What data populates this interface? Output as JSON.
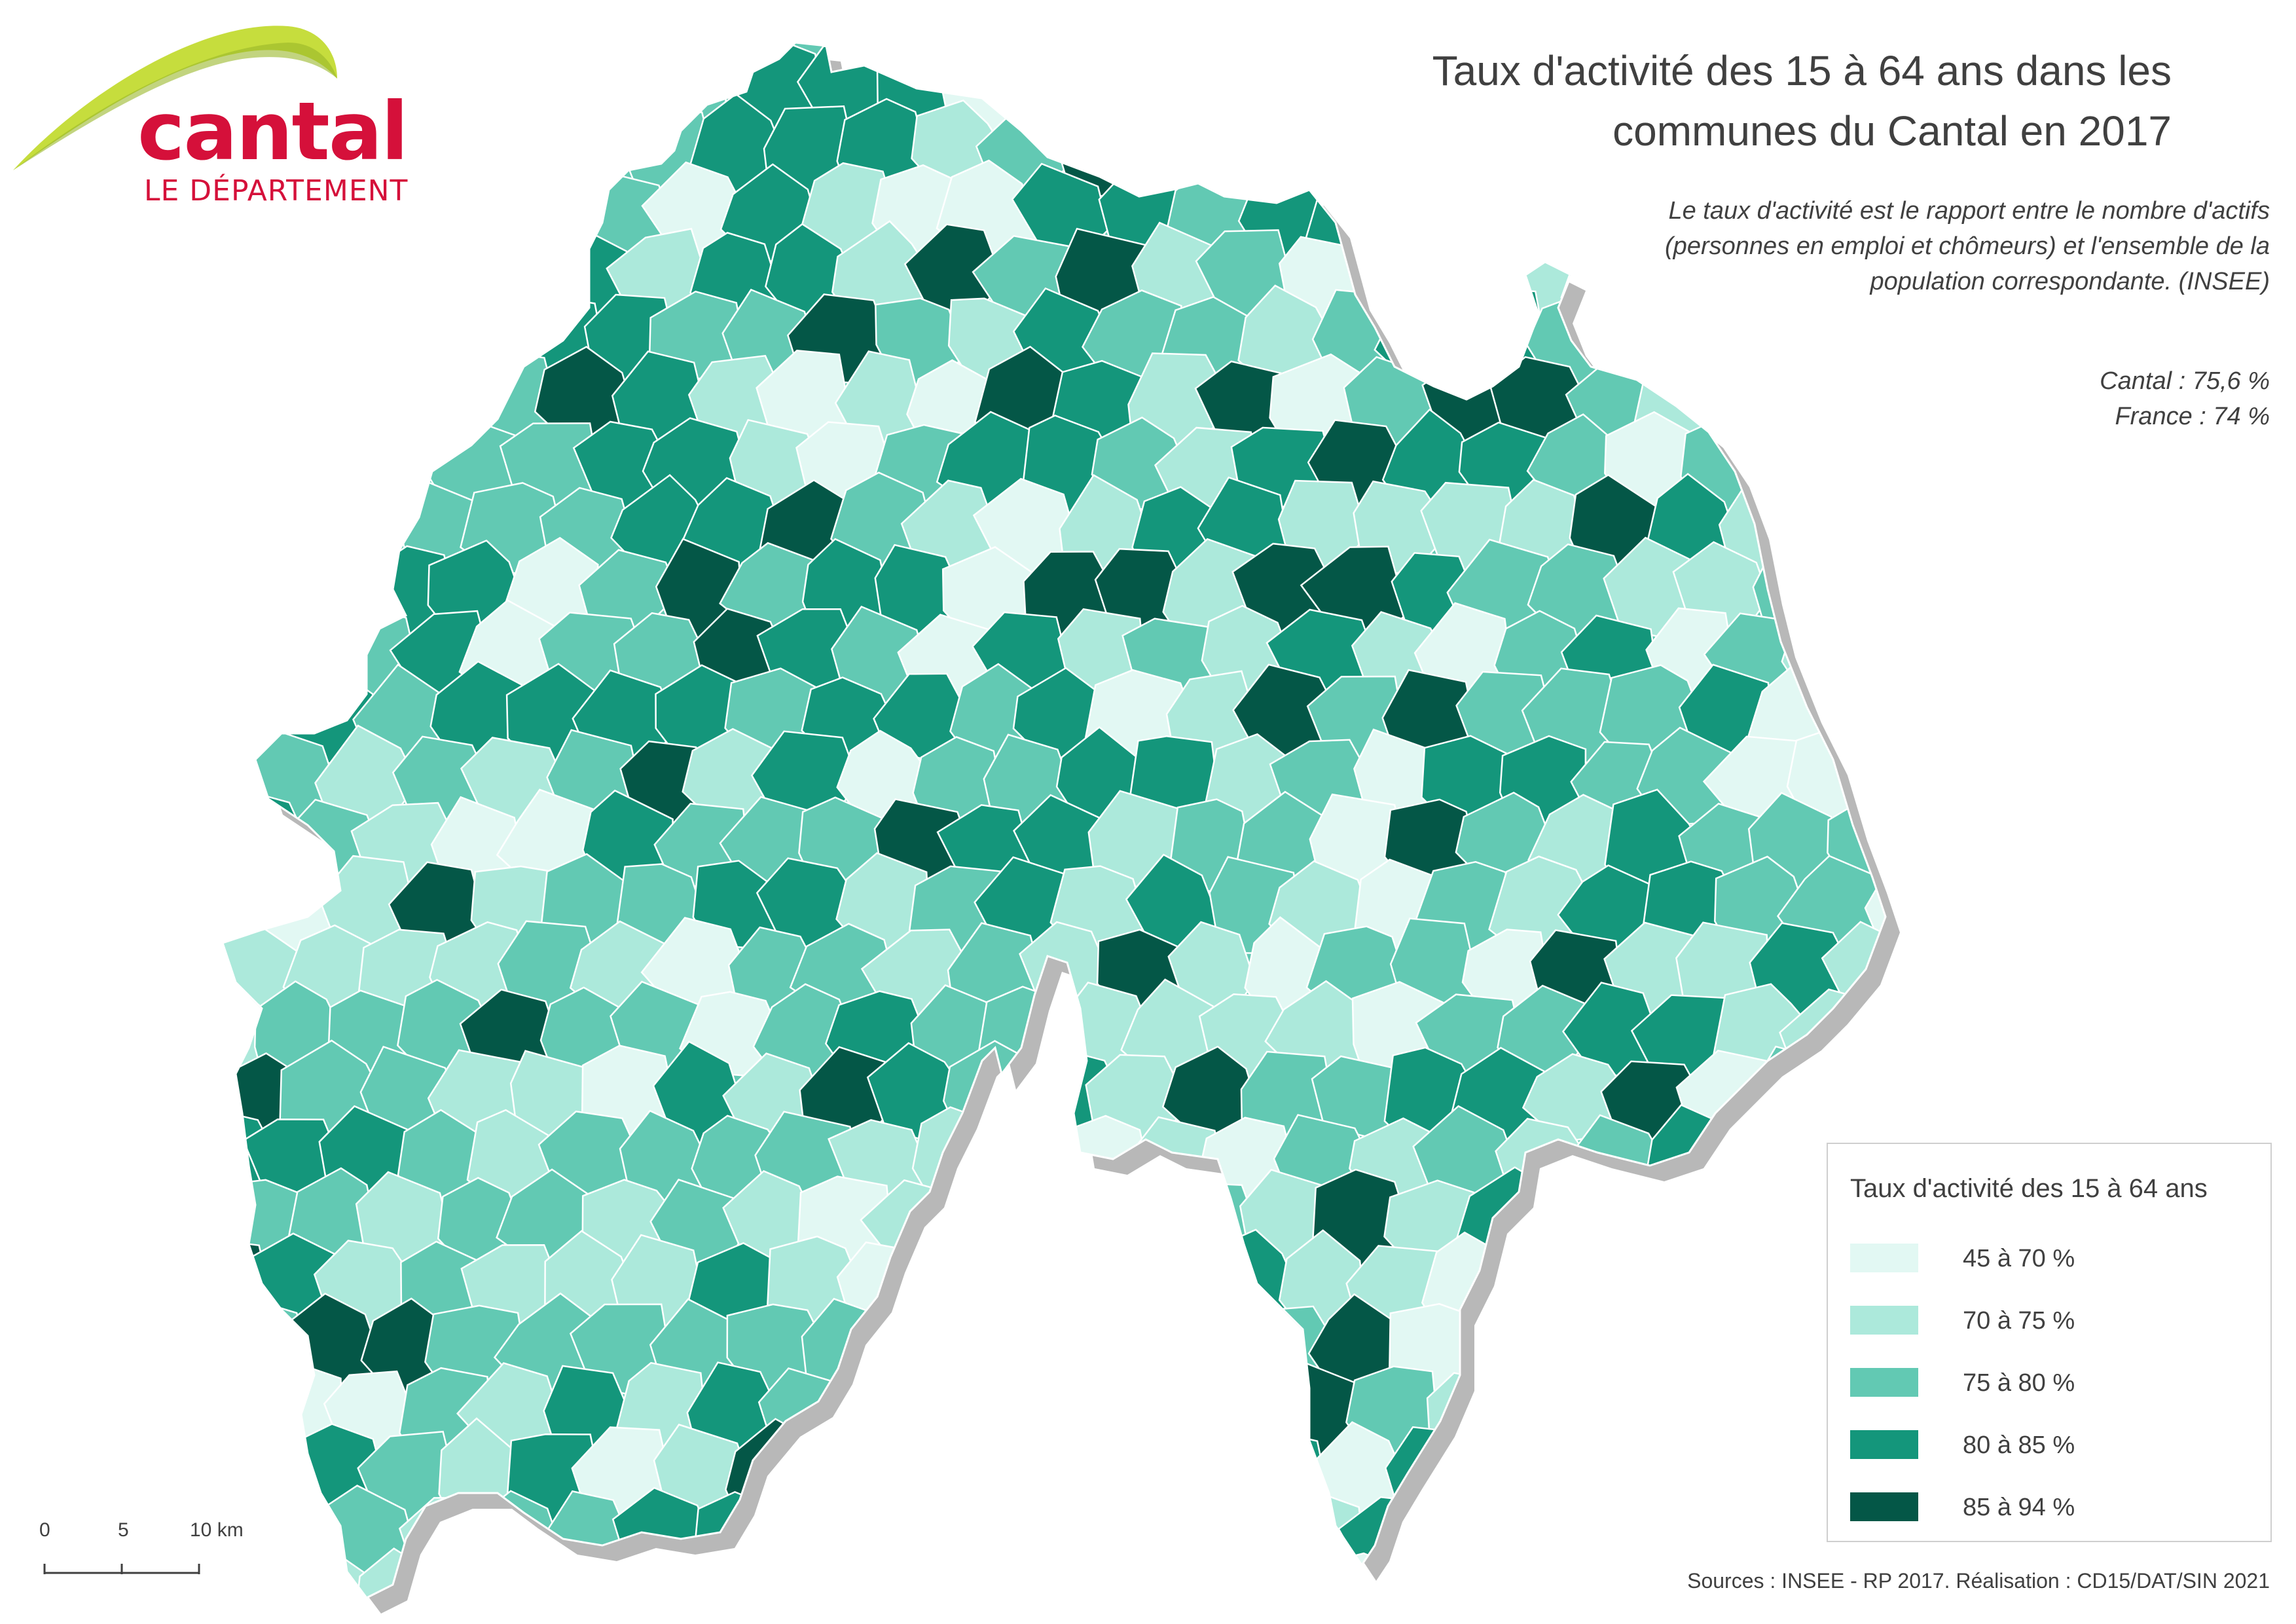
{
  "logo": {
    "wordmark": "cantal",
    "subtitle": "LE DÉPARTEMENT",
    "colors": {
      "red": "#d5103a",
      "green_light": "#c6dd3d",
      "green_dark": "#9ab82a"
    }
  },
  "title": {
    "line1": "Taux d'activité des 15 à 64 ans dans les",
    "line2": "communes du Cantal en 2017"
  },
  "subtitle": {
    "line1": "Le taux d'activité est le rapport entre le nombre d'actifs",
    "line2": "(personnes en emploi et chômeurs) et l'ensemble de la",
    "line3": "population correspondante. (INSEE)"
  },
  "reference_values": {
    "cantal": "Cantal : 75,6 %",
    "france": "France : 74 %"
  },
  "legend": {
    "title": "Taux d'activité des 15 à 64 ans",
    "items": [
      {
        "label": "45 à 70 %",
        "color": "#e2f8f3"
      },
      {
        "label": "70 à 75 %",
        "color": "#ace9db"
      },
      {
        "label": "75 à 80 %",
        "color": "#62c9b3"
      },
      {
        "label": "80 à 85 %",
        "color": "#14967b"
      },
      {
        "label": "85 à 94 %",
        "color": "#045747"
      }
    ]
  },
  "scale_bar": {
    "labels": [
      "0",
      "5",
      "10 km"
    ]
  },
  "sources": "Sources : INSEE - RP 2017. Réalisation : CD15/DAT/SIN 2021",
  "map": {
    "boundary_color": "#ffffff",
    "shadow_color": "#b8b8b8"
  }
}
